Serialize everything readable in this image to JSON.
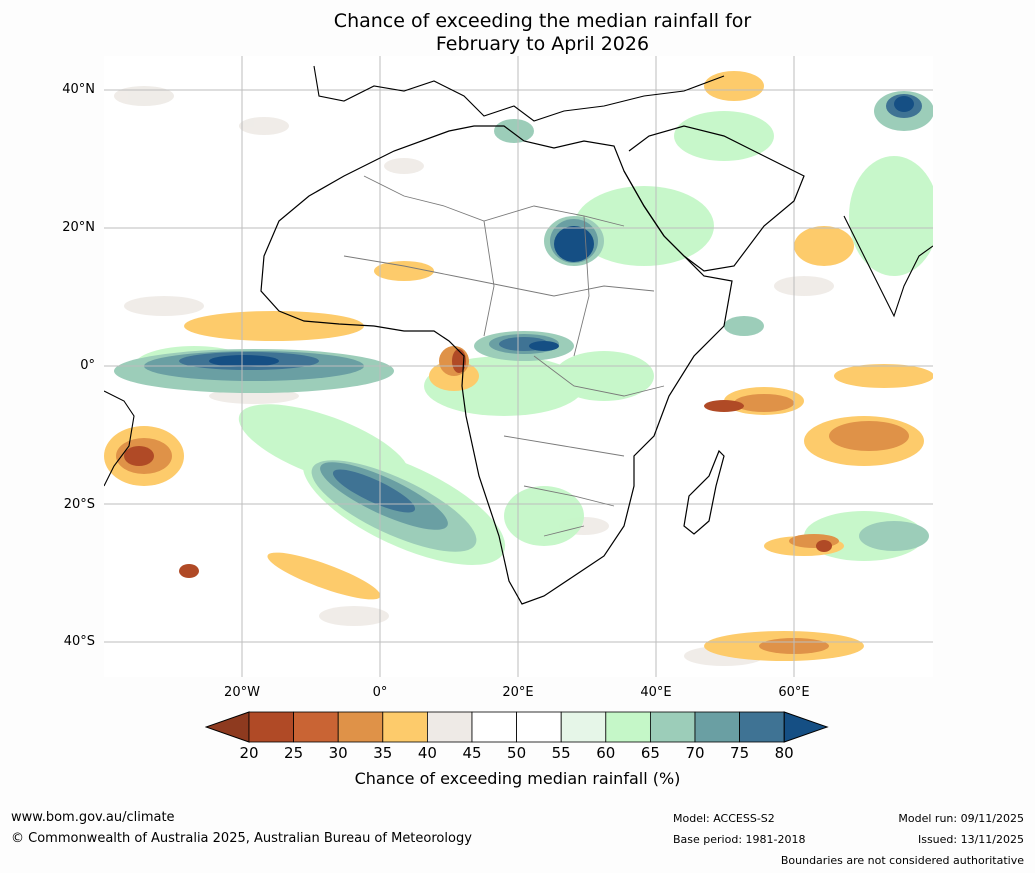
{
  "title": {
    "line1": "Chance of exceeding the median rainfall for",
    "line2": "February to April 2026"
  },
  "map": {
    "region": "Africa",
    "lat_labels": [
      "40°N",
      "20°N",
      "0°",
      "20°S",
      "40°S"
    ],
    "lon_labels": [
      "20°W",
      "0°",
      "20°E",
      "40°E",
      "60°E"
    ]
  },
  "colorbar": {
    "label": "Chance of exceeding median rainfall (%)",
    "ticks": [
      "20",
      "25",
      "30",
      "35",
      "40",
      "45",
      "50",
      "55",
      "60",
      "65",
      "70",
      "75",
      "80"
    ],
    "colors": [
      "#8e3a1f",
      "#b04a26",
      "#c96434",
      "#df9248",
      "#fdcb6b",
      "#eeeae6",
      "#ffffff",
      "#ffffff",
      "#e6f6e8",
      "#c5f7c8",
      "#9ccdb9",
      "#6a9fa3",
      "#3f7394",
      "#154f84"
    ]
  },
  "footer": {
    "website": "www.bom.gov.au/climate",
    "copyright": "© Commonwealth of Australia 2025, Australian Bureau of Meteorology",
    "model": "Model: ACCESS-S2",
    "base_period": "Base period: 1981-2018",
    "model_run": "Model run: 09/11/2025",
    "issued": "Issued: 13/11/2025",
    "disclaimer": "Boundaries are not considered authoritative"
  }
}
